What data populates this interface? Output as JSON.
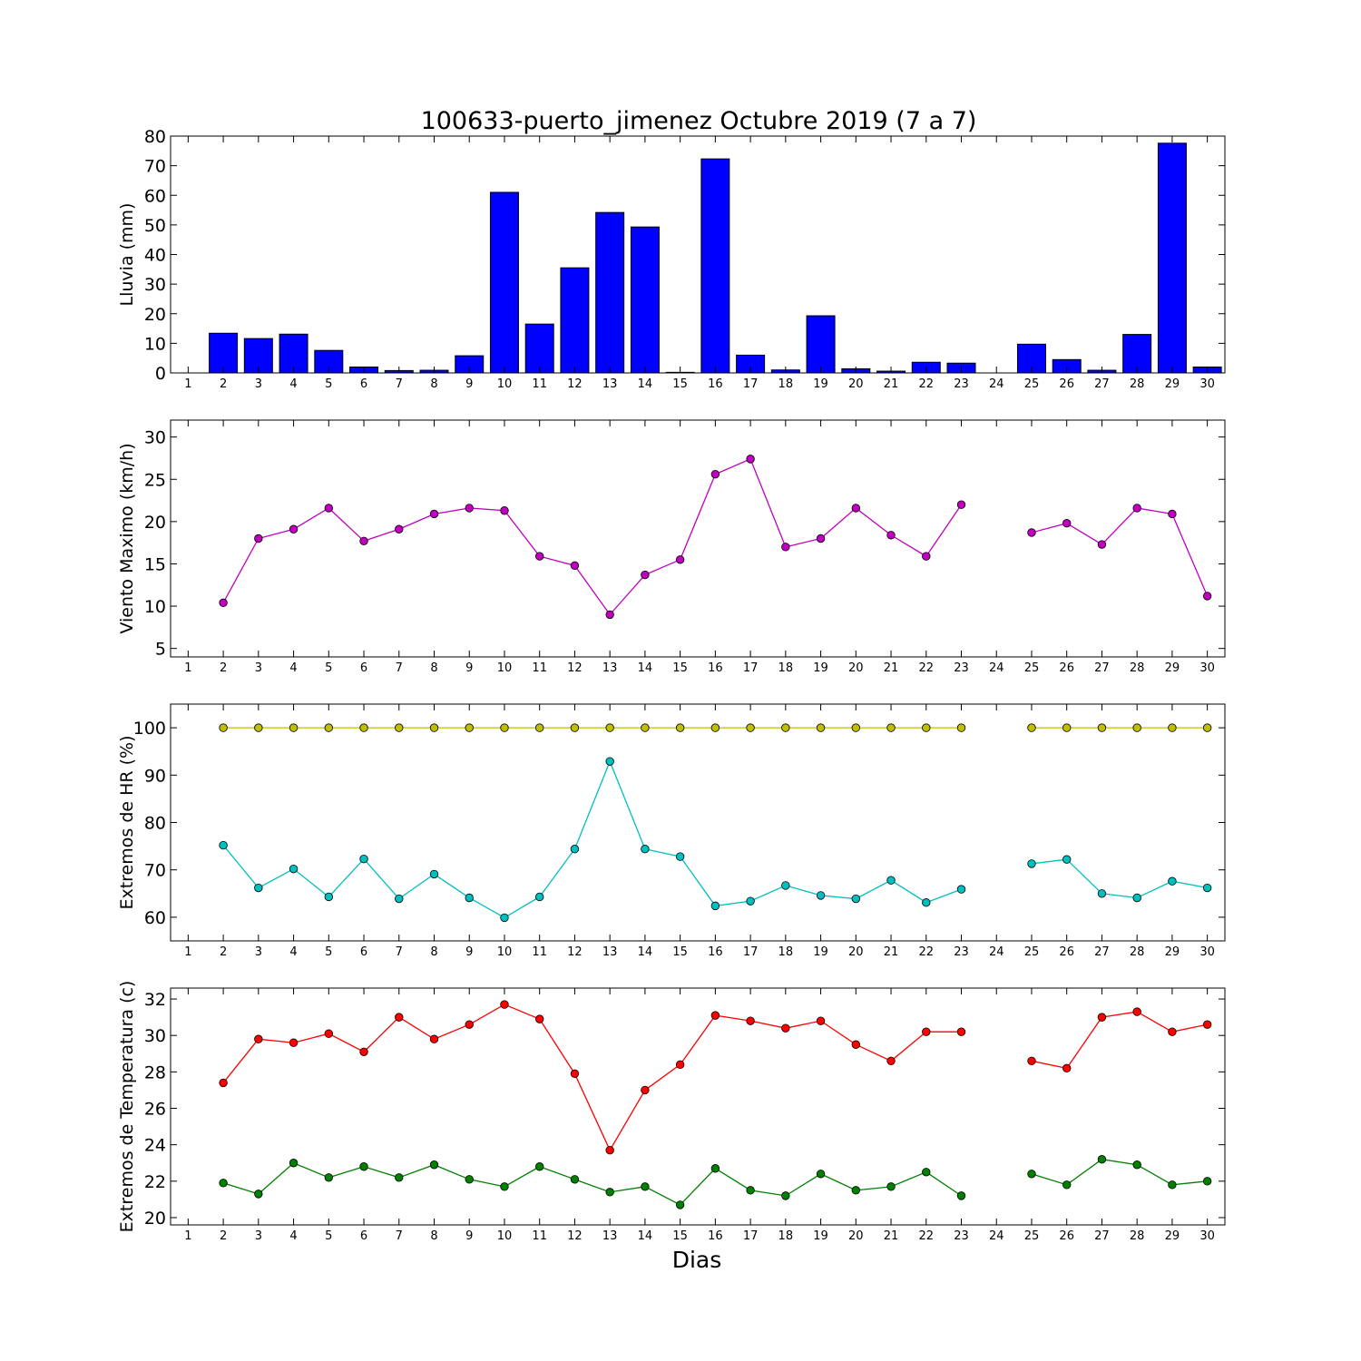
{
  "title": "100633-puerto_jimenez Octubre 2019  (7 a 7)",
  "xlabel": "Dias",
  "days": [
    1,
    2,
    3,
    4,
    5,
    6,
    7,
    8,
    9,
    10,
    11,
    12,
    13,
    14,
    15,
    16,
    17,
    18,
    19,
    20,
    21,
    22,
    23,
    24,
    25,
    26,
    27,
    28,
    29,
    30
  ],
  "colors": {
    "rain": "#0000ff",
    "wind": "#bf00bf",
    "hr_max": "#bfbf00",
    "hr_min": "#00bfbf",
    "temp_max": "#ff0000",
    "temp_min": "#008000"
  },
  "chart_data": [
    {
      "type": "bar",
      "ylabel": "Lluvia (mm)",
      "xlim": [
        0.5,
        30.5
      ],
      "ylim": [
        0,
        80
      ],
      "yticks": [
        0,
        10,
        20,
        30,
        40,
        50,
        60,
        70,
        80
      ],
      "categories": [
        1,
        2,
        3,
        4,
        5,
        6,
        7,
        8,
        9,
        10,
        11,
        12,
        13,
        14,
        15,
        16,
        17,
        18,
        19,
        20,
        21,
        22,
        23,
        24,
        25,
        26,
        27,
        28,
        29,
        30
      ],
      "series": [
        {
          "color": "#0000ff",
          "values": [
            null,
            13.4,
            11.6,
            13.1,
            7.6,
            2.0,
            0.8,
            0.9,
            5.8,
            61.0,
            16.5,
            35.5,
            54.2,
            49.3,
            0.2,
            72.3,
            6.0,
            1.0,
            19.3,
            1.4,
            0.6,
            3.6,
            3.3,
            null,
            9.7,
            4.5,
            0.9,
            13.0,
            77.6,
            2.0
          ]
        }
      ]
    },
    {
      "type": "line",
      "ylabel": "Viento Maximo (km/h)",
      "xlim": [
        0.5,
        30.5
      ],
      "ylim": [
        4,
        32
      ],
      "yticks": [
        5,
        10,
        15,
        20,
        25,
        30
      ],
      "x": [
        1,
        2,
        3,
        4,
        5,
        6,
        7,
        8,
        9,
        10,
        11,
        12,
        13,
        14,
        15,
        16,
        17,
        18,
        19,
        20,
        21,
        22,
        23,
        24,
        25,
        26,
        27,
        28,
        29,
        30
      ],
      "series": [
        {
          "color": "#bf00bf",
          "values": [
            null,
            10.4,
            18.0,
            19.1,
            21.6,
            17.7,
            19.1,
            20.9,
            21.6,
            21.3,
            15.9,
            14.8,
            9.0,
            13.7,
            15.5,
            25.6,
            27.4,
            17.0,
            18.0,
            21.6,
            18.4,
            15.9,
            22.0,
            null,
            18.7,
            19.8,
            17.3,
            21.6,
            20.9,
            11.2
          ]
        }
      ]
    },
    {
      "type": "line",
      "ylabel": "Extremos de HR (%)",
      "xlim": [
        0.5,
        30.5
      ],
      "ylim": [
        55,
        105
      ],
      "yticks": [
        60,
        70,
        80,
        90,
        100
      ],
      "x": [
        1,
        2,
        3,
        4,
        5,
        6,
        7,
        8,
        9,
        10,
        11,
        12,
        13,
        14,
        15,
        16,
        17,
        18,
        19,
        20,
        21,
        22,
        23,
        24,
        25,
        26,
        27,
        28,
        29,
        30
      ],
      "series": [
        {
          "color": "#bfbf00",
          "values": [
            null,
            100,
            100,
            100,
            100,
            100,
            100,
            100,
            100,
            100,
            100,
            100,
            100,
            100,
            100,
            100,
            100,
            100,
            100,
            100,
            100,
            100,
            100,
            null,
            100,
            100,
            100,
            100,
            100,
            100
          ]
        },
        {
          "color": "#00bfbf",
          "values": [
            null,
            75.2,
            66.2,
            70.2,
            64.3,
            72.3,
            63.9,
            69.1,
            64.1,
            59.9,
            64.3,
            74.4,
            92.9,
            74.4,
            72.8,
            62.4,
            63.4,
            66.7,
            64.6,
            63.9,
            67.8,
            63.1,
            65.9,
            null,
            71.3,
            72.2,
            65.0,
            64.1,
            67.6,
            66.2
          ]
        }
      ]
    },
    {
      "type": "line",
      "ylabel": "Extremos de Temperatura (c)",
      "xlim": [
        0.5,
        30.5
      ],
      "ylim": [
        19.6,
        32.6
      ],
      "yticks": [
        20,
        22,
        24,
        26,
        28,
        30,
        32
      ],
      "x": [
        1,
        2,
        3,
        4,
        5,
        6,
        7,
        8,
        9,
        10,
        11,
        12,
        13,
        14,
        15,
        16,
        17,
        18,
        19,
        20,
        21,
        22,
        23,
        24,
        25,
        26,
        27,
        28,
        29,
        30
      ],
      "series": [
        {
          "color": "#ff0000",
          "values": [
            null,
            27.4,
            29.8,
            29.6,
            30.1,
            29.1,
            31.0,
            29.8,
            30.6,
            31.7,
            30.9,
            27.9,
            23.7,
            27.0,
            28.4,
            31.1,
            30.8,
            30.4,
            30.8,
            29.5,
            28.6,
            30.2,
            30.2,
            null,
            28.6,
            28.2,
            31.0,
            31.3,
            30.2,
            30.6
          ]
        },
        {
          "color": "#008000",
          "values": [
            null,
            21.9,
            21.3,
            23.0,
            22.2,
            22.8,
            22.2,
            22.9,
            22.1,
            21.7,
            22.8,
            22.1,
            21.4,
            21.7,
            20.7,
            22.7,
            21.5,
            21.2,
            22.4,
            21.5,
            21.7,
            22.5,
            21.2,
            null,
            22.4,
            21.8,
            23.2,
            22.9,
            21.8,
            22.0
          ]
        }
      ]
    }
  ]
}
